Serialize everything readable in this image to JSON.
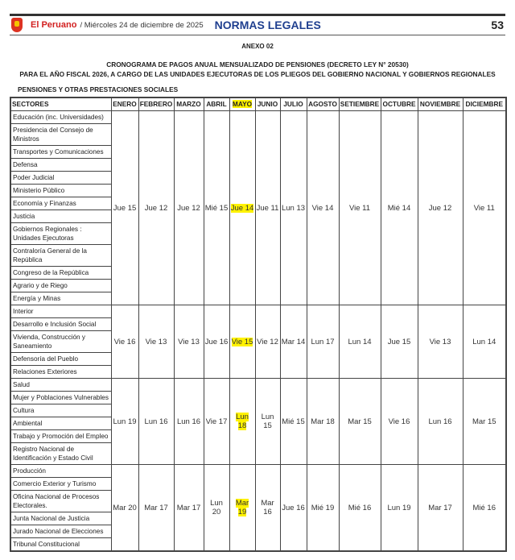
{
  "masthead": {
    "brand": "El Peruano",
    "date": "/ Miércoles 24 de diciembre de 2025",
    "section": "NORMAS LEGALES",
    "page": "53",
    "logo_icon": "peru-coat-of-arms-icon"
  },
  "annex": "ANEXO 02",
  "title_line1": "CRONOGRAMA DE PAGOS ANUAL MENSUALIZADO DE PENSIONES (DECRETO LEY N° 20530)",
  "title_line2": "PARA EL AÑO FISCAL 2026, A CARGO DE LAS UNIDADES EJECUTORAS DE LOS PLIEGOS DEL GOBIERNO NACIONAL Y GOBIERNOS REGIONALES",
  "section_title": "PENSIONES Y OTRAS PRESTACIONES SOCIALES",
  "highlight_color": "#fff200",
  "highlighted_column": "MAYO",
  "table": {
    "headers": [
      "SECTORES",
      "ENERO",
      "FEBRERO",
      "MARZO",
      "ABRIL",
      "MAYO",
      "JUNIO",
      "JULIO",
      "AGOSTO",
      "SETIEMBRE",
      "OCTUBRE",
      "NOVIEMBRE",
      "DICIEMBRE"
    ],
    "groups": [
      {
        "sectors": [
          "Educación (inc. Universidades)",
          "Presidencia del Consejo de Ministros",
          "Transportes y Comunicaciones",
          "Defensa",
          "Poder Judicial",
          "Ministerio Público",
          "Economía y Finanzas",
          "Justicia",
          "Gobiernos Regionales : Unidades Ejecutoras",
          "Contraloría General de la República",
          "Congreso de la República",
          "Agrario y de Riego",
          "Energía y Minas"
        ],
        "dates": [
          "Jue 15",
          "Jue 12",
          "Jue 12",
          "Mié 15",
          "Jue 14",
          "Jue 11",
          "Lun 13",
          "Vie 14",
          "Vie 11",
          "Mié 14",
          "Jue 12",
          "Vie 11"
        ]
      },
      {
        "sectors": [
          "Interior",
          "Desarrollo e Inclusión Social",
          "Vivienda, Construcción y Saneamiento",
          "Defensoría del Pueblo",
          "Relaciones Exteriores"
        ],
        "dates": [
          "Vie 16",
          "Vie 13",
          "Vie 13",
          "Jue 16",
          "Vie 15",
          "Vie 12",
          "Mar 14",
          "Lun 17",
          "Lun 14",
          "Jue 15",
          "Vie 13",
          "Lun 14"
        ]
      },
      {
        "sectors": [
          "Salud",
          "Mujer y Poblaciones Vulnerables",
          "Cultura",
          "Ambiental",
          "Trabajo y Promoción del Empleo",
          "Registro Nacional de Identificación y Estado Civil"
        ],
        "dates": [
          "Lun 19",
          "Lun 16",
          "Lun 16",
          "Vie 17",
          "Lun 18",
          "Lun 15",
          "Mié 15",
          "Mar 18",
          "Mar 15",
          "Vie 16",
          "Lun 16",
          "Mar 15"
        ]
      },
      {
        "sectors": [
          "Producción",
          "Comercio Exterior y Turismo",
          "Oficina Nacional de Procesos Electorales.",
          "Junta Nacional de Justicia",
          "Jurado Nacional de Elecciones",
          "Tribunal Constitucional"
        ],
        "dates": [
          "Mar 20",
          "Mar 17",
          "Mar 17",
          "Lun 20",
          "Mar 19",
          "Mar 16",
          "Jue 16",
          "Mié 19",
          "Mié 16",
          "Lun 19",
          "Mar 17",
          "Mié 16"
        ]
      }
    ]
  }
}
